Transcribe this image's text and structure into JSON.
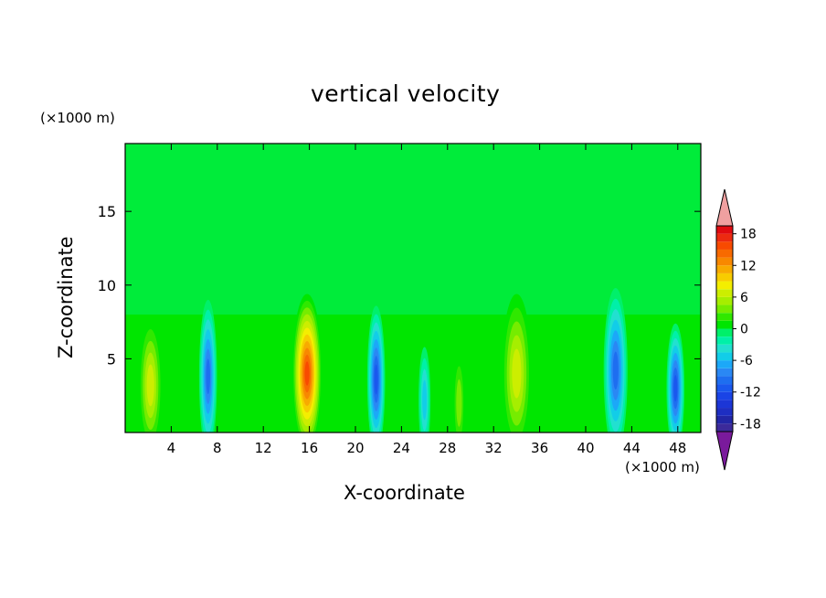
{
  "chart_data": {
    "type": "heatmap",
    "title": "vertical velocity",
    "xlabel": "X-coordinate",
    "ylabel": "Z-coordinate",
    "x_unit": "(×1000 m)",
    "y_unit": "(×1000 m)",
    "xlim": [
      0,
      50
    ],
    "ylim": [
      0,
      19.6
    ],
    "x_ticks": [
      4,
      8,
      12,
      16,
      20,
      24,
      28,
      32,
      36,
      40,
      44,
      48
    ],
    "y_ticks": [
      5,
      10,
      15
    ],
    "grid": false,
    "colorbar": {
      "ticks": [
        18,
        12,
        6,
        0,
        -6,
        -12,
        -18
      ],
      "levels": [
        -21,
        -19.5,
        -18,
        -16.5,
        -15,
        -13.5,
        -12,
        -10.5,
        -9,
        -7.5,
        -6,
        -4.5,
        -3,
        -1.5,
        0,
        1.5,
        3,
        4.5,
        6,
        7.5,
        9,
        10.5,
        12,
        13.5,
        15,
        16.5,
        18,
        19.5,
        21
      ],
      "colors": [
        "#7a1a9c",
        "#3c2a9a",
        "#2226a6",
        "#1e2ec2",
        "#1c36d6",
        "#1a44e6",
        "#1a58ee",
        "#1e6ef0",
        "#2a88f4",
        "#1ca8f8",
        "#12cde8",
        "#22e0d0",
        "#00f0a8",
        "#00f06a",
        "#00e600",
        "#30e800",
        "#76ec00",
        "#a6ee00",
        "#ccee00",
        "#f4ee00",
        "#f8cc00",
        "#f8aa00",
        "#f88800",
        "#f86a00",
        "#f84a00",
        "#ec2a10",
        "#e00a10",
        "#f0a0a0"
      ],
      "extend": "both"
    },
    "cells": [
      {
        "x": 2.2,
        "z": 3.2,
        "w": 0.4,
        "value": 7
      },
      {
        "x": 7.2,
        "z": 3.8,
        "w": 0.3,
        "value": -11
      },
      {
        "x": 15.8,
        "z": 4.0,
        "w": 0.5,
        "value": 16
      },
      {
        "x": 21.8,
        "z": 3.6,
        "w": 0.3,
        "value": -12
      },
      {
        "x": 26.0,
        "z": 2.2,
        "w": 0.2,
        "value": -6
      },
      {
        "x": 29.0,
        "z": 2.0,
        "w": 0.2,
        "value": 5
      },
      {
        "x": 34.0,
        "z": 4.0,
        "w": 0.5,
        "value": 7
      },
      {
        "x": 42.6,
        "z": 4.2,
        "w": 0.4,
        "value": -11
      },
      {
        "x": 47.8,
        "z": 3.0,
        "w": 0.3,
        "value": -12
      }
    ]
  }
}
